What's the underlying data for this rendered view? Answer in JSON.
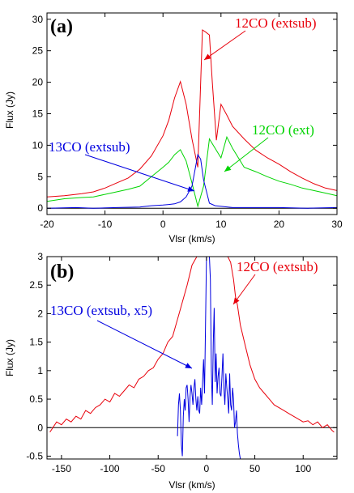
{
  "chart_data": [
    {
      "type": "line",
      "panel_label": "(a)",
      "xlabel": "Vlsr (km/s)",
      "ylabel": "Flux (Jy)",
      "xlim": [
        -20,
        30
      ],
      "ylim": [
        -1,
        31
      ],
      "xticks": [
        "-20",
        "-10",
        "0",
        "10",
        "20",
        "30"
      ],
      "yticks": [
        "0",
        "5",
        "10",
        "15",
        "20",
        "25",
        "30"
      ],
      "zero_line": true,
      "series": [
        {
          "name": "12CO (extsub)",
          "color": "#e8000b",
          "x": [
            -20,
            -17,
            -14,
            -12,
            -10,
            -8,
            -6,
            -4,
            -2,
            0,
            1,
            2,
            3,
            4,
            5,
            6,
            6.8,
            7.3,
            8.0,
            8.5,
            9.2,
            10.0,
            11.0,
            12.0,
            14.0,
            16.0,
            18.0,
            20.0,
            22.0,
            24.0,
            26.0,
            28.0,
            30.0
          ],
          "y": [
            1.8,
            2.0,
            2.3,
            2.6,
            3.2,
            4.0,
            4.8,
            6.2,
            8.3,
            11.5,
            14.0,
            17.5,
            20.1,
            16.5,
            11.0,
            6.5,
            28.3,
            28.0,
            27.5,
            20.0,
            10.8,
            16.5,
            14.8,
            13.0,
            11.0,
            9.2,
            8.0,
            7.0,
            5.8,
            4.8,
            3.9,
            3.2,
            2.8
          ]
        },
        {
          "name": "12CO (ext)",
          "color": "#00d400",
          "x": [
            -20,
            -17,
            -14,
            -12,
            -10,
            -8,
            -6,
            -4,
            -2,
            0,
            1,
            2,
            3,
            4,
            5,
            6,
            7,
            8,
            9,
            10,
            11,
            12,
            13,
            14,
            16,
            18,
            20,
            22,
            24,
            26,
            28,
            30
          ],
          "y": [
            1.1,
            1.5,
            1.7,
            1.8,
            2.2,
            2.6,
            3.0,
            3.5,
            5.0,
            6.5,
            7.3,
            8.5,
            9.3,
            7.5,
            4.0,
            0.3,
            3.5,
            11.0,
            9.5,
            8.0,
            11.3,
            9.5,
            8.0,
            6.5,
            5.8,
            5.0,
            4.3,
            3.8,
            3.2,
            2.8,
            2.4,
            2.0
          ]
        },
        {
          "name": "13CO (extsub)",
          "color": "#0000e0",
          "x": [
            -20,
            -15,
            -12,
            -8,
            -4,
            -2,
            0,
            1,
            2,
            3,
            4,
            5,
            6,
            6.5,
            7,
            8,
            9,
            10,
            12,
            15,
            20,
            25,
            30
          ],
          "y": [
            0.0,
            0.1,
            0.0,
            0.1,
            0.2,
            0.4,
            0.5,
            0.6,
            0.7,
            1.0,
            1.8,
            3.5,
            8.5,
            7.8,
            4.5,
            0.8,
            0.4,
            0.3,
            0.1,
            0.1,
            0.1,
            0.0,
            0.1
          ]
        }
      ],
      "annotations": [
        {
          "text": "12CO (extsub)",
          "color": "#e8000b"
        },
        {
          "text": "12CO (ext)",
          "color": "#00d400"
        },
        {
          "text": "13CO (extsub)",
          "color": "#0000e0"
        }
      ]
    },
    {
      "type": "line",
      "panel_label": "(b)",
      "xlabel": "Vlsr (km/s)",
      "ylabel": "Flux (Jy)",
      "xlim": [
        -165,
        135
      ],
      "ylim": [
        -0.55,
        3
      ],
      "xticks": [
        "-150",
        "-100",
        "-50",
        "0",
        "50",
        "100"
      ],
      "yticks": [
        "-0.5",
        "0",
        "0.5",
        "1",
        "1.5",
        "2",
        "2.5",
        "3"
      ],
      "zero_line": true,
      "series": [
        {
          "name": "12CO (extsub)",
          "color": "#e8000b",
          "x": [
            -162,
            -155,
            -150,
            -145,
            -140,
            -135,
            -130,
            -125,
            -120,
            -115,
            -110,
            -105,
            -100,
            -95,
            -90,
            -85,
            -80,
            -75,
            -70,
            -65,
            -60,
            -55,
            -50,
            -45,
            -40,
            -35,
            -30,
            -25,
            -20,
            -15,
            -10,
            -7,
            -5,
            20,
            22,
            25,
            28,
            30,
            32,
            35,
            40,
            45,
            50,
            55,
            60,
            65,
            70,
            75,
            80,
            85,
            90,
            95,
            100,
            105,
            110,
            115,
            120,
            125,
            130,
            132
          ],
          "y": [
            -0.08,
            0.1,
            0.05,
            0.15,
            0.1,
            0.2,
            0.15,
            0.3,
            0.25,
            0.35,
            0.4,
            0.5,
            0.45,
            0.6,
            0.55,
            0.65,
            0.75,
            0.7,
            0.85,
            0.9,
            1.0,
            1.05,
            1.2,
            1.3,
            1.5,
            1.6,
            1.9,
            2.2,
            2.5,
            2.85,
            3.0,
            3.0,
            3.0,
            3.0,
            3.0,
            2.9,
            2.6,
            2.3,
            2.15,
            1.8,
            1.45,
            1.1,
            0.85,
            0.7,
            0.6,
            0.5,
            0.4,
            0.35,
            0.3,
            0.25,
            0.2,
            0.15,
            0.1,
            0.12,
            0.05,
            0.1,
            0.0,
            0.05,
            -0.05,
            -0.08
          ]
        },
        {
          "name": "13CO (extsub, x5)",
          "color": "#0000e0",
          "x": [
            -30,
            -29,
            -28,
            -27,
            -26,
            -25,
            -24,
            -23,
            -22,
            -21,
            -20,
            -19,
            -18,
            -17,
            -16,
            -15,
            -14,
            -13,
            -12,
            -11,
            -10,
            -9,
            -8,
            -7,
            -6,
            -5,
            -4,
            -3,
            -2,
            -1,
            0,
            1,
            2,
            3,
            4,
            5,
            6,
            7,
            8,
            9,
            10,
            11,
            12,
            13,
            14,
            15,
            16,
            17,
            18,
            19,
            20,
            21,
            22,
            23,
            24,
            25,
            26,
            27,
            28,
            29,
            30,
            31,
            32,
            33,
            34,
            35
          ],
          "y": [
            -0.15,
            0.4,
            0.6,
            0.3,
            -0.3,
            -0.5,
            0.2,
            0.5,
            0.3,
            0.7,
            0.75,
            0.5,
            0.1,
            0.55,
            0.75,
            0.6,
            0.4,
            0.7,
            0.85,
            0.5,
            0.3,
            0.55,
            0.3,
            0.25,
            0.7,
            0.4,
            0.8,
            1.2,
            0.6,
            1.8,
            3.0,
            3.0,
            3.0,
            3.0,
            2.6,
            1.0,
            0.4,
            1.5,
            2.1,
            0.8,
            1.3,
            0.6,
            0.9,
            1.05,
            0.6,
            0.55,
            0.9,
            1.3,
            0.7,
            0.4,
            0.95,
            0.7,
            0.5,
            0.25,
            0.95,
            0.4,
            0.3,
            0.7,
            0.5,
            0.0,
            0.1,
            0.3,
            -0.1,
            -0.3,
            -0.45,
            -0.55
          ]
        }
      ],
      "annotations": [
        {
          "text": "12CO (extsub)",
          "color": "#e8000b"
        },
        {
          "text": "13CO (extsub, x5)",
          "color": "#0000e0"
        }
      ]
    }
  ]
}
